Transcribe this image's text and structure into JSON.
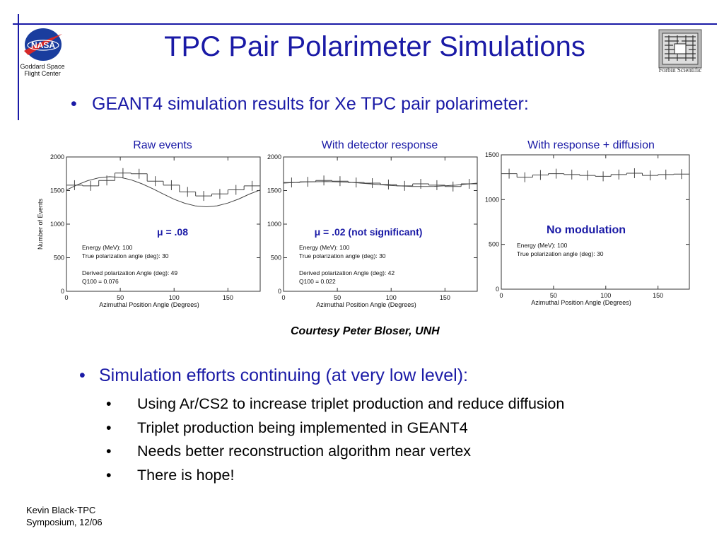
{
  "slide": {
    "title": "TPC Pair Polarimeter Simulations",
    "logo_left_caption": [
      "Goddard Space",
      "Flight Center"
    ],
    "logo_right_caption": "Forbin Scientific",
    "logo_left_text": "NASA",
    "main_bullet": "GEANT4 simulation results for Xe TPC pair polarimeter:",
    "courtesy": "Courtesy Peter Bloser, UNH",
    "sim_heading": "Simulation efforts continuing (at very low level):",
    "sub_bullets": [
      "Using Ar/CS2 to increase triplet production and reduce diffusion",
      "Triplet production being implemented in GEANT4",
      "Needs better reconstruction algorithm near vertex",
      "There is hope!"
    ],
    "footer": [
      "Kevin Black-TPC",
      "Symposium, 12/06"
    ],
    "bullet_glyph": "•",
    "colors": {
      "title_blue": "#1a1aa6",
      "rule_blue": "#1a1aa6",
      "plot_line": "#444444"
    }
  },
  "chart_data": [
    {
      "type": "line",
      "panel_title": "Raw events",
      "xlabel": "Azimuthal Position Angle (Degrees)",
      "ylabel": "Number of Events",
      "xlim": [
        0,
        180
      ],
      "ylim": [
        0,
        2000
      ],
      "xticks": [
        0,
        50,
        100,
        150
      ],
      "yticks": [
        0,
        500,
        1000,
        1500,
        2000
      ],
      "highlight": "μ = .08",
      "annotations": [
        "Energy (MeV):  100",
        "True polarization angle (deg):  30",
        "",
        "Derived polarization Angle (deg):  49",
        "Q100 =  0.076"
      ],
      "series": [
        {
          "kind": "histogram",
          "x": [
            0,
            15,
            30,
            45,
            60,
            75,
            90,
            105,
            120,
            135,
            150,
            165
          ],
          "values": [
            1580,
            1570,
            1650,
            1760,
            1750,
            1640,
            1580,
            1480,
            1420,
            1450,
            1510,
            1570
          ]
        },
        {
          "kind": "fit",
          "x": [
            0,
            10,
            20,
            30,
            40,
            50,
            60,
            70,
            80,
            90,
            100,
            110,
            120,
            130,
            140,
            150,
            160,
            170,
            180
          ],
          "values": [
            1508,
            1585,
            1648,
            1690,
            1706,
            1696,
            1660,
            1601,
            1528,
            1448,
            1371,
            1310,
            1271,
            1258,
            1273,
            1314,
            1374,
            1447,
            1508
          ]
        }
      ]
    },
    {
      "type": "line",
      "panel_title": "With detector response",
      "xlabel": "Azimuthal Position Angle (Degrees)",
      "ylabel": "",
      "xlim": [
        0,
        180
      ],
      "ylim": [
        0,
        2000
      ],
      "xticks": [
        0,
        50,
        100,
        150
      ],
      "yticks": [
        0,
        500,
        1000,
        1500,
        2000
      ],
      "highlight": "μ = .02 (not significant)",
      "annotations": [
        "Energy (MeV):  100",
        "True polarization angle (deg):  30",
        "",
        "Derived polarization Angle (deg):  42",
        "Q100 =  0.022"
      ],
      "series": [
        {
          "kind": "histogram",
          "x": [
            0,
            15,
            30,
            45,
            60,
            75,
            90,
            105,
            120,
            135,
            150,
            165
          ],
          "values": [
            1620,
            1630,
            1650,
            1640,
            1620,
            1610,
            1590,
            1570,
            1600,
            1580,
            1560,
            1600
          ]
        },
        {
          "kind": "fit",
          "x": [
            0,
            20,
            40,
            60,
            80,
            100,
            120,
            140,
            160,
            180
          ],
          "values": [
            1610,
            1630,
            1635,
            1625,
            1600,
            1575,
            1560,
            1562,
            1580,
            1610
          ]
        }
      ]
    },
    {
      "type": "line",
      "panel_title": "With response + diffusion",
      "xlabel": "Azimuthal Position Angle (Degrees)",
      "ylabel": "",
      "xlim": [
        0,
        180
      ],
      "ylim": [
        0,
        1500
      ],
      "xticks": [
        0,
        50,
        100,
        150
      ],
      "yticks": [
        0,
        500,
        1000,
        1500
      ],
      "highlight": "No modulation",
      "annotations": [
        "Energy (MeV):  100",
        "True polarization angle (deg):  30"
      ],
      "series": [
        {
          "kind": "histogram",
          "x": [
            0,
            15,
            30,
            45,
            60,
            75,
            90,
            105,
            120,
            135,
            150,
            165
          ],
          "values": [
            1290,
            1250,
            1275,
            1290,
            1280,
            1270,
            1260,
            1280,
            1295,
            1270,
            1280,
            1285
          ]
        }
      ]
    }
  ]
}
